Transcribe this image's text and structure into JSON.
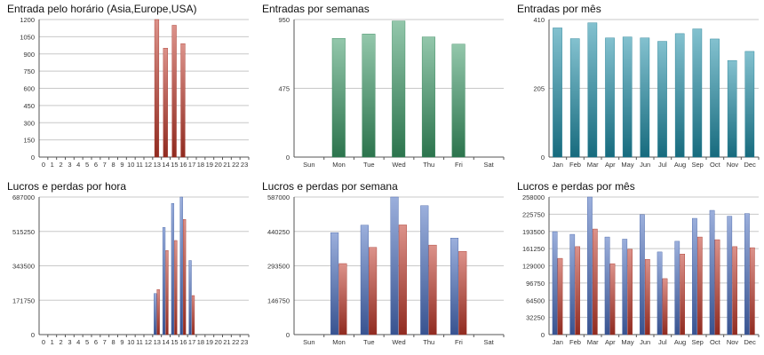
{
  "colors": {
    "red": "#c0392b",
    "green": "#3a9a66",
    "teal": "#1e8ea8",
    "blue": "#4a6ec0",
    "grid": "#c8c8c8",
    "axis": "#555555"
  },
  "chart_data": [
    {
      "type": "bar",
      "title": "Entrada pelo horário (Asia,Europe,USA)",
      "categories": [
        "0",
        "1",
        "2",
        "3",
        "4",
        "5",
        "6",
        "7",
        "8",
        "9",
        "10",
        "11",
        "12",
        "13",
        "14",
        "15",
        "16",
        "17",
        "18",
        "19",
        "20",
        "21",
        "22",
        "23"
      ],
      "yticks": [
        "0",
        "150",
        "300",
        "450",
        "600",
        "750",
        "900",
        "1050",
        "1200"
      ],
      "ylim": [
        0,
        1200
      ],
      "series": [
        {
          "color": "red",
          "values": [
            0,
            0,
            0,
            0,
            0,
            0,
            0,
            0,
            0,
            0,
            0,
            0,
            0,
            1200,
            950,
            1150,
            990,
            0,
            0,
            0,
            0,
            0,
            0,
            0
          ]
        }
      ]
    },
    {
      "type": "bar",
      "title": "Entradas por semanas",
      "categories": [
        "Sun",
        "Mon",
        "Tue",
        "Wed",
        "Thu",
        "Fri",
        "Sat"
      ],
      "yticks": [
        "0",
        "475",
        "950"
      ],
      "ylim": [
        0,
        950
      ],
      "series": [
        {
          "color": "green",
          "values": [
            0,
            820,
            850,
            940,
            830,
            780,
            0
          ]
        }
      ]
    },
    {
      "type": "bar",
      "title": "Entradas por mês",
      "categories": [
        "Jan",
        "Feb",
        "Mar",
        "Apr",
        "May",
        "Jun",
        "Jul",
        "Aug",
        "Sep",
        "Oct",
        "Nov",
        "Dec"
      ],
      "yticks": [
        "0",
        "205",
        "410"
      ],
      "ylim": [
        0,
        410
      ],
      "series": [
        {
          "color": "teal",
          "values": [
            385,
            353,
            400,
            355,
            358,
            355,
            345,
            368,
            382,
            352,
            288,
            315
          ]
        }
      ]
    },
    {
      "type": "bar",
      "title": "Lucros e perdas por hora",
      "categories": [
        "0",
        "1",
        "2",
        "3",
        "4",
        "5",
        "6",
        "7",
        "8",
        "9",
        "10",
        "11",
        "12",
        "13",
        "14",
        "15",
        "16",
        "17",
        "18",
        "19",
        "20",
        "21",
        "22",
        "23"
      ],
      "yticks": [
        "0",
        "171750",
        "343500",
        "515250",
        "687000"
      ],
      "ylim": [
        0,
        687000
      ],
      "series": [
        {
          "color": "blue",
          "values": [
            0,
            0,
            0,
            0,
            0,
            0,
            0,
            0,
            0,
            0,
            0,
            0,
            0,
            205000,
            535000,
            655000,
            687000,
            370000,
            0,
            0,
            0,
            0,
            0,
            0
          ]
        },
        {
          "color": "red",
          "values": [
            0,
            0,
            0,
            0,
            0,
            0,
            0,
            0,
            0,
            0,
            0,
            0,
            0,
            225000,
            420000,
            470000,
            575000,
            195000,
            0,
            0,
            0,
            0,
            0,
            0
          ]
        }
      ]
    },
    {
      "type": "bar",
      "title": "Lucros e perdas por semana",
      "categories": [
        "Sun",
        "Mon",
        "Tue",
        "Wed",
        "Thu",
        "Fri",
        "Sat"
      ],
      "yticks": [
        "0",
        "146750",
        "293500",
        "440250",
        "587000"
      ],
      "ylim": [
        0,
        587000
      ],
      "series": [
        {
          "color": "blue",
          "values": [
            0,
            435000,
            467000,
            587000,
            550000,
            412000,
            0
          ]
        },
        {
          "color": "red",
          "values": [
            0,
            303000,
            372000,
            468000,
            382000,
            355000,
            0
          ]
        }
      ]
    },
    {
      "type": "bar",
      "title": "Lucros e perdas por mês",
      "categories": [
        "Jan",
        "Feb",
        "Mar",
        "Apr",
        "May",
        "Jun",
        "Jul",
        "Aug",
        "Sep",
        "Oct",
        "Nov",
        "Dec"
      ],
      "yticks": [
        "0",
        "32250",
        "64500",
        "96750",
        "129000",
        "161250",
        "193500",
        "225750",
        "258000"
      ],
      "ylim": [
        0,
        258000
      ],
      "series": [
        {
          "color": "blue",
          "values": [
            193000,
            188000,
            258000,
            183000,
            179000,
            225000,
            155000,
            175000,
            218000,
            233000,
            222000,
            227000
          ]
        },
        {
          "color": "red",
          "values": [
            143000,
            165000,
            198000,
            133000,
            160000,
            141000,
            105000,
            151000,
            183000,
            178000,
            165000,
            163000
          ]
        }
      ]
    }
  ]
}
